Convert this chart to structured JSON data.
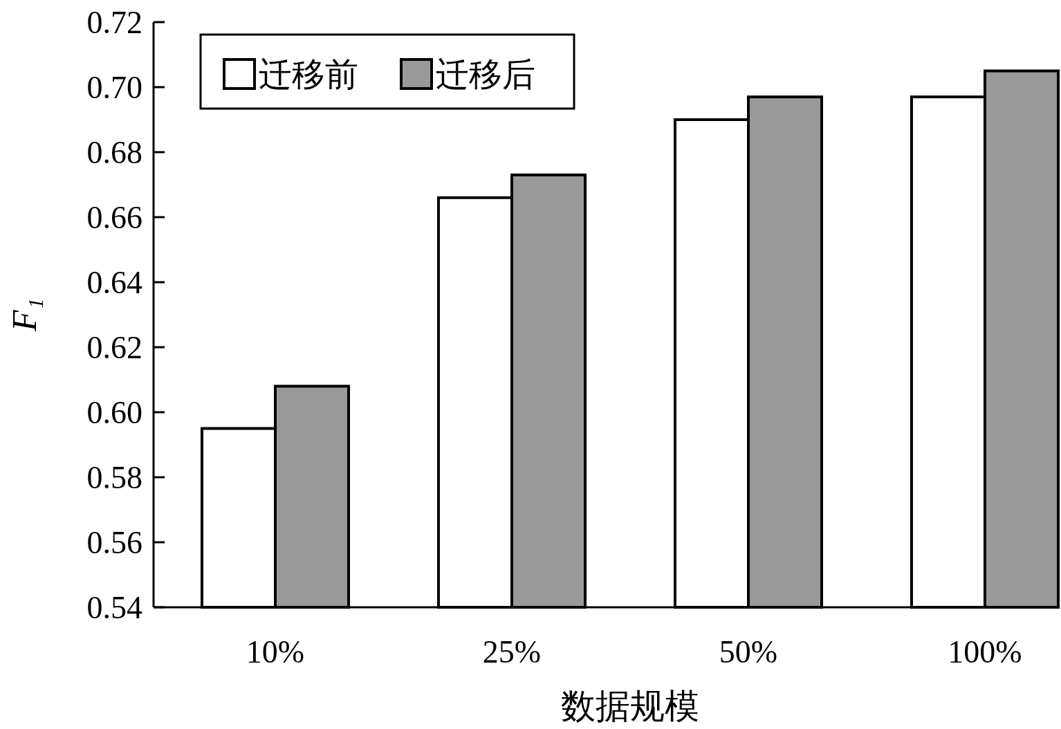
{
  "chart_data": {
    "type": "bar",
    "xlabel": "数据规模",
    "ylabel": "F₁",
    "categories": [
      "10%",
      "25%",
      "50%",
      "100%"
    ],
    "series": [
      {
        "name": "迁移前",
        "color": "#ffffff",
        "values": [
          0.595,
          0.666,
          0.69,
          0.697
        ]
      },
      {
        "name": "迁移后",
        "color": "#999999",
        "values": [
          0.608,
          0.673,
          0.697,
          0.705
        ]
      }
    ],
    "ylim": [
      0.54,
      0.72
    ],
    "yticks": [
      0.54,
      0.56,
      0.58,
      {
        "value": 0.6,
        "label": "0.60"
      },
      0.62,
      0.64,
      0.66,
      0.68,
      {
        "value": 0.7,
        "label": "0.70"
      },
      0.72
    ],
    "legend": "top left",
    "grid": false
  }
}
